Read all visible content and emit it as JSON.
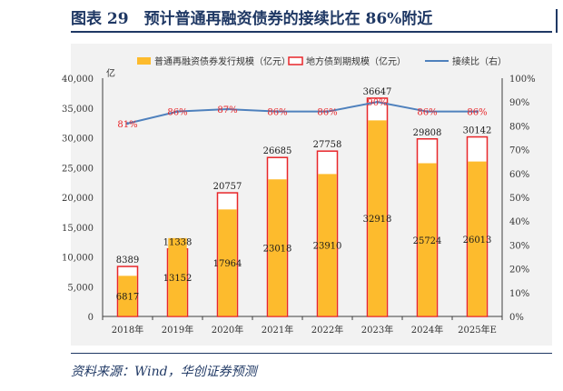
{
  "figure": {
    "title": "图表 29　预计普通再融资债券的接续比在 86%附近",
    "source": "资料来源：Wind，华创证券预测"
  },
  "chart_data": {
    "type": "bar",
    "categories": [
      "2018年",
      "2019年",
      "2020年",
      "2021年",
      "2022年",
      "2023年",
      "2024年",
      "2025年E"
    ],
    "y_unit_label": "亿",
    "ylim": [
      0,
      40000
    ],
    "yticks": [
      "0",
      "5,000",
      "10,000",
      "15,000",
      "20,000",
      "25,000",
      "30,000",
      "35,000",
      "40,000"
    ],
    "y2lim": [
      0,
      100
    ],
    "y2ticks": [
      "0%",
      "10%",
      "20%",
      "30%",
      "40%",
      "50%",
      "60%",
      "70%",
      "80%",
      "90%",
      "100%"
    ],
    "legend_position": "top",
    "series": [
      {
        "name": "普通再融资债券发行规模（亿元）",
        "kind": "bar",
        "color": "#fdbb2d",
        "values": [
          6817,
          13152,
          17964,
          23018,
          23910,
          32918,
          25724,
          26013
        ],
        "labels": [
          "6817",
          "13152",
          "17964",
          "23018",
          "23910",
          "32918",
          "25724",
          "26013"
        ]
      },
      {
        "name": "地方债到期规模（亿元）",
        "kind": "bar-outline",
        "color": "#e8262a",
        "values": [
          8389,
          11338,
          20757,
          26685,
          27758,
          36647,
          29808,
          30142
        ],
        "labels": [
          "8389",
          "11338",
          "20757",
          "26685",
          "27758",
          "36647",
          "29808",
          "30142"
        ]
      },
      {
        "name": "接续比（右）",
        "kind": "line",
        "axis": "right",
        "color": "#4f81bd",
        "values": [
          81,
          86,
          87,
          86,
          86,
          90,
          86,
          86
        ],
        "labels": [
          "81%",
          "86%",
          "87%",
          "86%",
          "86%",
          "90%",
          "86%",
          "86%"
        ],
        "label_color": "#e8262a"
      }
    ]
  }
}
